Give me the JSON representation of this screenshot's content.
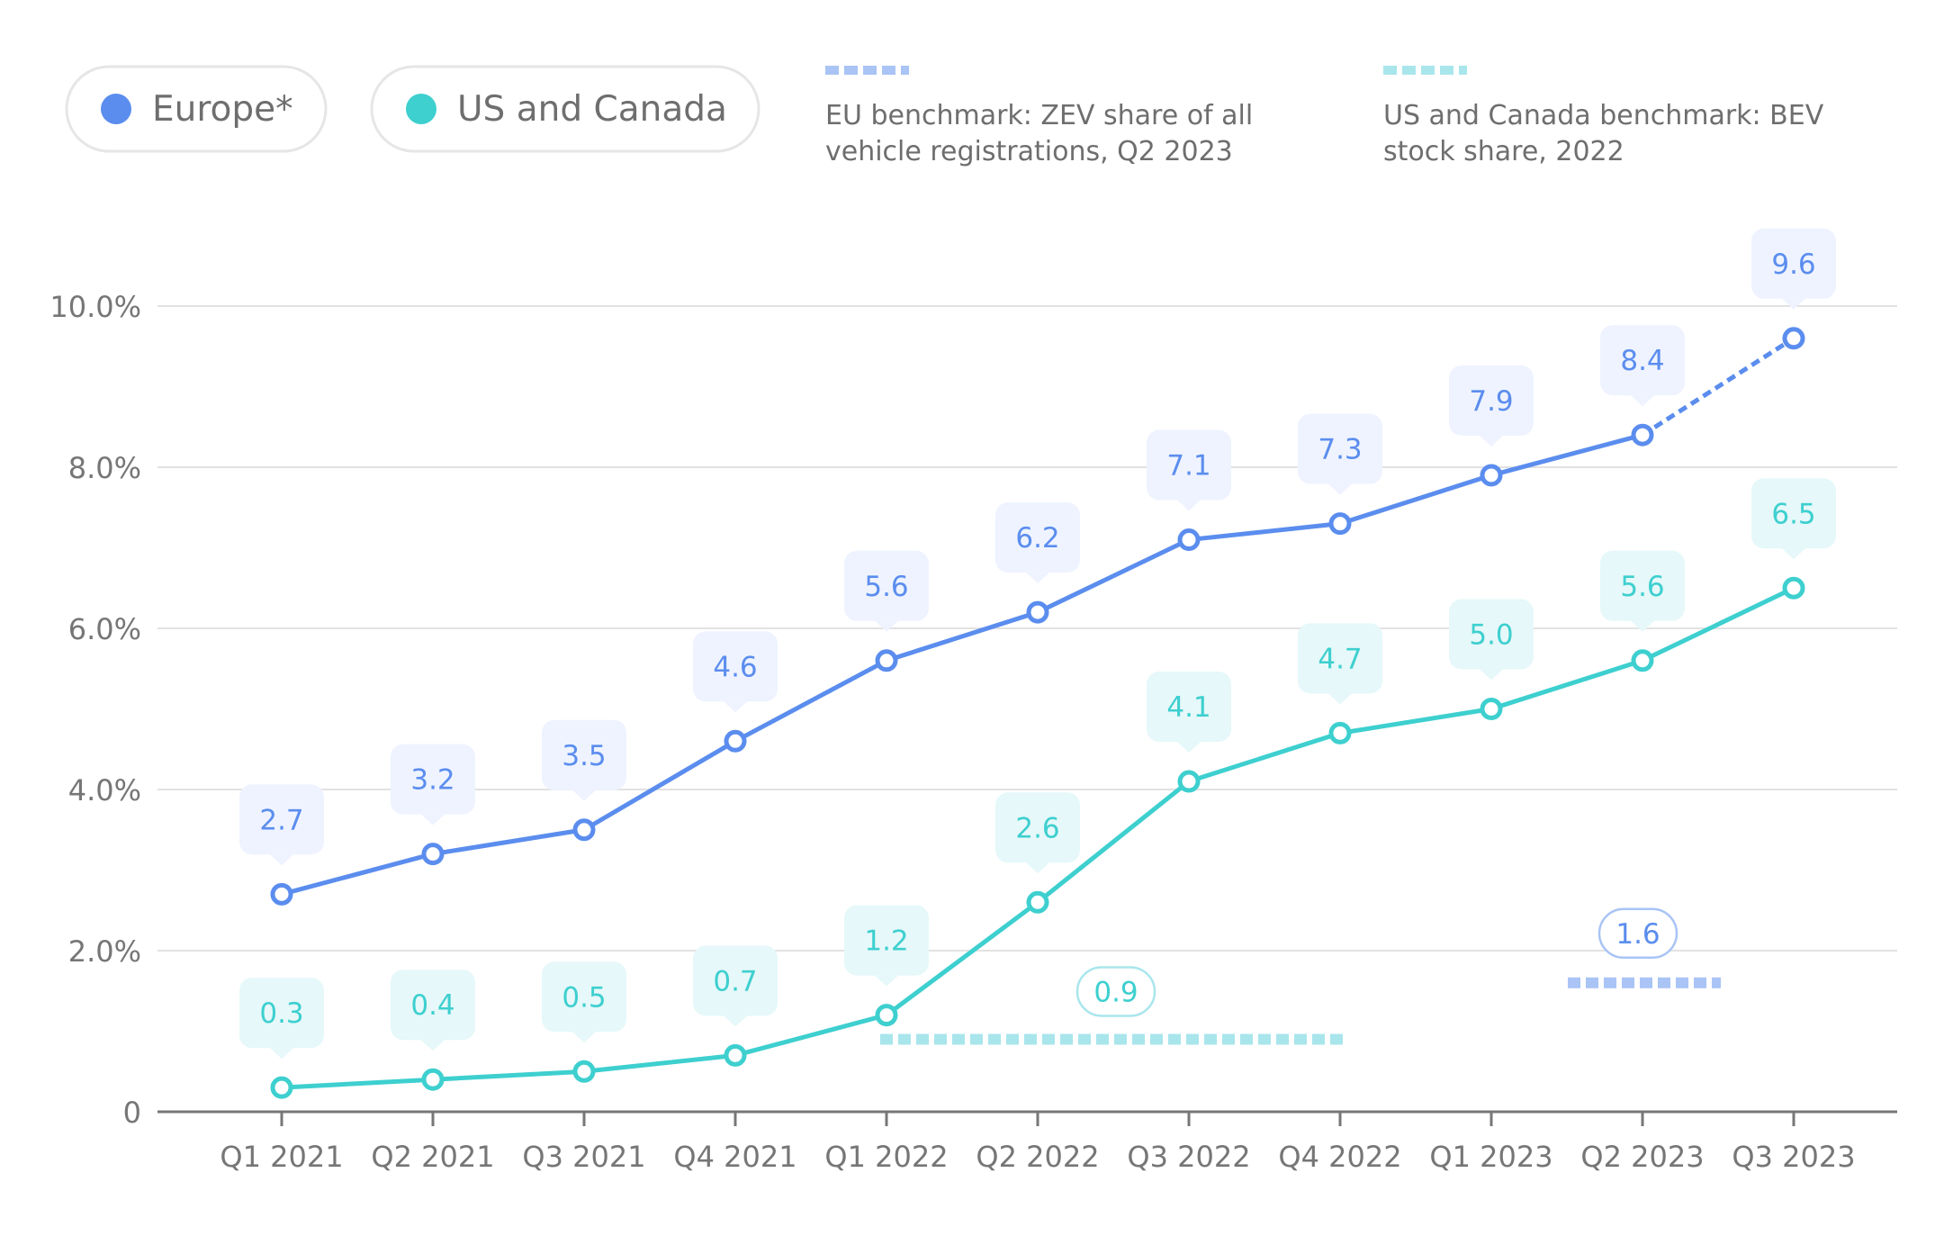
{
  "colors": {
    "europe": "#5b8dee",
    "us_canada": "#3ecfcf",
    "europe_bubble": "#eef3ff",
    "us_bubble": "#e6f8f9",
    "eu_benchmark": "#a9c4f5",
    "us_benchmark": "#a9e6ec",
    "grid": "#e2e2e2",
    "axis": "#777777",
    "tick_text": "#767676",
    "legend_text": "#6e6e6e",
    "legend_border": "#e6e6e6"
  },
  "legend": {
    "items": [
      {
        "label": "Europe*",
        "color": "#5b8dee"
      },
      {
        "label": "US and Canada",
        "color": "#3ecfcf"
      }
    ],
    "benchmarks": [
      {
        "lines": [
          "EU benchmark: ZEV share of all",
          "vehicle registrations, Q2 2023"
        ],
        "color": "#a9c4f5"
      },
      {
        "lines": [
          "US and Canada benchmark: BEV",
          "stock share, 2022"
        ],
        "color": "#a9e6ec"
      }
    ]
  },
  "chart_data": {
    "type": "line",
    "categories": [
      "Q1 2021",
      "Q2 2021",
      "Q3 2021",
      "Q4 2021",
      "Q1 2022",
      "Q2 2022",
      "Q3 2022",
      "Q4 2022",
      "Q1 2023",
      "Q2 2023",
      "Q3 2023"
    ],
    "series": [
      {
        "name": "Europe*",
        "values": [
          2.7,
          3.2,
          3.5,
          4.6,
          5.6,
          6.2,
          7.1,
          7.3,
          7.9,
          8.4,
          9.6
        ],
        "labels": [
          "2.7",
          "3.2",
          "3.5",
          "4.6",
          "5.6",
          "6.2",
          "7.1",
          "7.3",
          "7.9",
          "8.4",
          "9.6"
        ],
        "dashed_last_segment": true
      },
      {
        "name": "US and Canada",
        "values": [
          0.3,
          0.4,
          0.5,
          0.7,
          1.2,
          2.6,
          4.1,
          4.7,
          5.0,
          5.6,
          6.5
        ],
        "labels": [
          "0.3",
          "0.4",
          "0.5",
          "0.7",
          "1.2",
          "2.6",
          "4.1",
          "4.7",
          "5.0",
          "5.6",
          "6.5"
        ]
      }
    ],
    "benchmarks": [
      {
        "name": "US and Canada benchmark",
        "value": 0.9,
        "label": "0.9",
        "from": "Q1 2022",
        "to": "Q4 2022"
      },
      {
        "name": "EU benchmark",
        "value": 1.6,
        "label": "1.6",
        "from": "Q2 2023",
        "to": "Q2 2023"
      }
    ],
    "y_ticks": [
      0,
      2,
      4,
      6,
      8,
      10
    ],
    "y_tick_labels": [
      "0",
      "2.0%",
      "4.0%",
      "6.0%",
      "8.0%",
      "10.0%"
    ],
    "ylim": [
      0,
      10
    ],
    "grid": true,
    "legend_position": "top"
  }
}
